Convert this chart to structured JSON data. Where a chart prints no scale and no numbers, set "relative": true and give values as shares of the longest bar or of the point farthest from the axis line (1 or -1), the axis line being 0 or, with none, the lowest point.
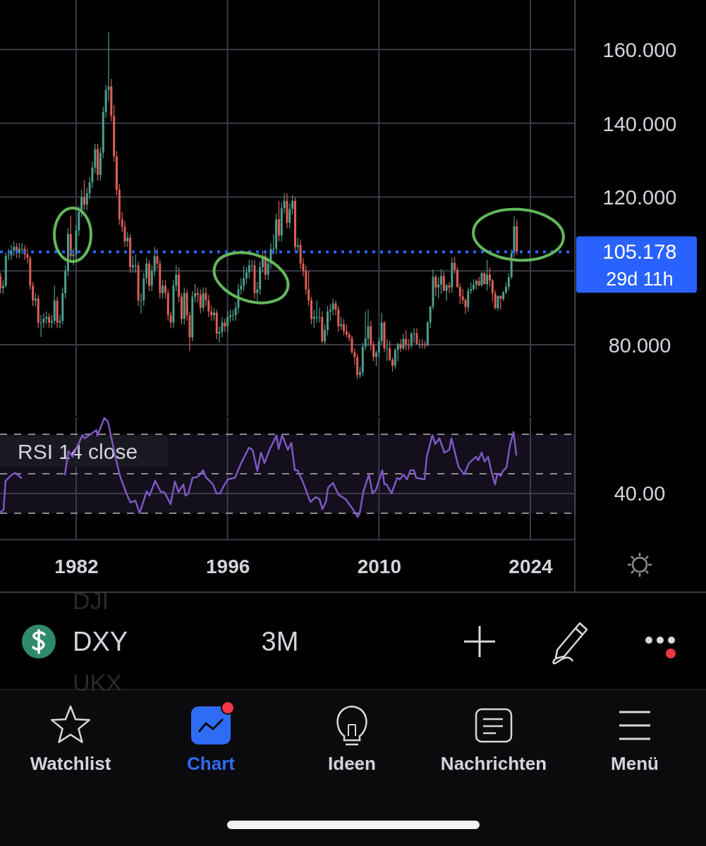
{
  "chart_data": [
    {
      "type": "candlestick",
      "xlim": [
        1974.96,
        2028.11
      ],
      "xticks": [
        1982,
        1996,
        2010,
        2024
      ],
      "ylim": [
        60.7,
        173.4
      ],
      "yticks": [
        {
          "value": 80,
          "label": "80.000"
        },
        {
          "value": 100,
          "label": null
        },
        {
          "value": 120,
          "label": "120.000"
        },
        {
          "value": 140,
          "label": "140.000"
        },
        {
          "value": 160,
          "label": "160.000"
        }
      ],
      "grid": true,
      "tick_labels": "y",
      "x": [
        1975,
        1975.25,
        1975.5,
        1975.75,
        1976,
        1976.25,
        1976.5,
        1976.75,
        1977,
        1977.25,
        1977.5,
        1977.75,
        1978,
        1978.25,
        1978.5,
        1978.75,
        1979,
        1979.25,
        1979.5,
        1979.75,
        1980,
        1980.25,
        1980.5,
        1980.75,
        1981,
        1981.25,
        1981.5,
        1981.75,
        1982,
        1982.25,
        1982.5,
        1982.75,
        1983,
        1983.25,
        1983.5,
        1983.75,
        1984,
        1984.25,
        1984.5,
        1984.75,
        1985,
        1985.25,
        1985.5,
        1985.75,
        1986,
        1986.25,
        1986.5,
        1986.75,
        1987,
        1987.25,
        1987.5,
        1987.75,
        1988,
        1988.25,
        1988.5,
        1988.75,
        1989,
        1989.25,
        1989.5,
        1989.75,
        1990,
        1990.25,
        1990.5,
        1990.75,
        1991,
        1991.25,
        1991.5,
        1991.75,
        1992,
        1992.25,
        1992.5,
        1992.75,
        1993,
        1993.25,
        1993.5,
        1993.75,
        1994,
        1994.25,
        1994.5,
        1994.75,
        1995,
        1995.25,
        1995.5,
        1995.75,
        1996,
        1996.25,
        1996.5,
        1996.75,
        1997,
        1997.25,
        1997.5,
        1997.75,
        1998,
        1998.25,
        1998.5,
        1998.75,
        1999,
        1999.25,
        1999.5,
        1999.75,
        2000,
        2000.25,
        2000.5,
        2000.75,
        2001,
        2001.25,
        2001.5,
        2001.75,
        2002,
        2002.25,
        2002.5,
        2002.75,
        2003,
        2003.25,
        2003.5,
        2003.75,
        2004,
        2004.25,
        2004.5,
        2004.75,
        2005,
        2005.25,
        2005.5,
        2005.75,
        2006,
        2006.25,
        2006.5,
        2006.75,
        2007,
        2007.25,
        2007.5,
        2007.75,
        2008,
        2008.25,
        2008.5,
        2008.75,
        2009,
        2009.25,
        2009.5,
        2009.75,
        2010,
        2010.25,
        2010.5,
        2010.75,
        2011,
        2011.25,
        2011.5,
        2011.75,
        2012,
        2012.25,
        2012.5,
        2012.75,
        2013,
        2013.25,
        2013.5,
        2013.75,
        2014,
        2014.25,
        2014.5,
        2014.75,
        2015,
        2015.25,
        2015.5,
        2015.75,
        2016,
        2016.25,
        2016.5,
        2016.75,
        2017,
        2017.25,
        2017.5,
        2017.75,
        2018,
        2018.25,
        2018.5,
        2018.75,
        2019,
        2019.25,
        2019.5,
        2019.75,
        2020,
        2020.25,
        2020.5,
        2020.75,
        2021,
        2021.25,
        2021.5,
        2021.75,
        2022,
        2022.25,
        2022.5,
        2022.75
      ],
      "ohlc": [
        [
          98.5,
          99.5,
          94.0,
          95.3
        ],
        [
          95.3,
          97.5,
          93.8,
          96.0
        ],
        [
          96.0,
          105.0,
          95.5,
          104.0
        ],
        [
          104.0,
          106.0,
          102.8,
          104.3
        ],
        [
          104.3,
          107.0,
          103.0,
          105.5
        ],
        [
          105.5,
          108.0,
          104.0,
          106.5
        ],
        [
          106.5,
          107.5,
          103.5,
          105.0
        ],
        [
          105.0,
          107.5,
          103.5,
          106.0
        ],
        [
          106.0,
          107.5,
          104.5,
          106.0
        ],
        [
          106.0,
          107.0,
          103.0,
          104.5
        ],
        [
          104.5,
          106.0,
          102.0,
          103.5
        ],
        [
          103.5,
          104.0,
          95.0,
          96.0
        ],
        [
          96.0,
          97.0,
          90.5,
          92.0
        ],
        [
          92.0,
          94.0,
          90.5,
          92.5
        ],
        [
          92.5,
          93.5,
          84.5,
          86.0
        ],
        [
          86.0,
          88.0,
          82.1,
          86.0
        ],
        [
          86.0,
          88.5,
          84.5,
          87.0
        ],
        [
          87.0,
          89.0,
          85.5,
          87.5
        ],
        [
          87.5,
          88.5,
          84.5,
          86.0
        ],
        [
          86.0,
          88.0,
          84.5,
          86.5
        ],
        [
          86.5,
          96.0,
          85.5,
          92.0
        ],
        [
          92.0,
          93.0,
          84.5,
          86.0
        ],
        [
          86.0,
          88.0,
          84.5,
          86.5
        ],
        [
          86.5,
          95.5,
          85.5,
          94.0
        ],
        [
          94.0,
          101.5,
          92.5,
          100.0
        ],
        [
          100.0,
          111.5,
          98.5,
          110.0
        ],
        [
          110.0,
          115.0,
          102.5,
          104.0
        ],
        [
          104.0,
          106.0,
          101.5,
          104.5
        ],
        [
          104.5,
          112.5,
          103.0,
          111.0
        ],
        [
          111.0,
          117.5,
          109.5,
          116.0
        ],
        [
          116.0,
          122.0,
          114.5,
          120.0
        ],
        [
          120.0,
          124.5,
          116.5,
          118.0
        ],
        [
          118.0,
          122.5,
          116.5,
          121.0
        ],
        [
          121.0,
          125.5,
          119.5,
          124.0
        ],
        [
          124.0,
          129.5,
          122.5,
          128.0
        ],
        [
          128.0,
          134.5,
          126.5,
          133.0
        ],
        [
          133.0,
          134.5,
          124.5,
          126.0
        ],
        [
          126.0,
          133.5,
          124.5,
          132.0
        ],
        [
          132.0,
          144.5,
          130.5,
          143.0
        ],
        [
          143.0,
          150.5,
          141.5,
          149.0
        ],
        [
          149.0,
          164.7,
          146.0,
          150.0
        ],
        [
          150.0,
          152.0,
          140.5,
          142.0
        ],
        [
          142.0,
          145.0,
          129.5,
          131.0
        ],
        [
          131.0,
          132.5,
          120.5,
          122.0
        ],
        [
          122.0,
          123.5,
          112.5,
          114.0
        ],
        [
          114.0,
          116.0,
          110.5,
          112.0
        ],
        [
          112.0,
          113.5,
          106.5,
          108.0
        ],
        [
          108.0,
          110.5,
          106.5,
          109.0
        ],
        [
          109.0,
          110.0,
          99.5,
          101.0
        ],
        [
          101.0,
          104.0,
          99.5,
          101.5
        ],
        [
          101.5,
          104.5,
          99.5,
          101.5
        ],
        [
          101.5,
          102.5,
          90.5,
          92.0
        ],
        [
          92.0,
          94.0,
          88.5,
          92.0
        ],
        [
          92.0,
          99.5,
          90.5,
          98.0
        ],
        [
          98.0,
          103.5,
          96.5,
          102.0
        ],
        [
          102.0,
          103.0,
          94.5,
          96.0
        ],
        [
          96.0,
          101.5,
          94.5,
          100.0
        ],
        [
          100.0,
          106.5,
          98.5,
          104.0
        ],
        [
          104.0,
          106.0,
          100.5,
          102.0
        ],
        [
          102.0,
          103.0,
          92.5,
          94.0
        ],
        [
          94.0,
          97.5,
          92.5,
          96.0
        ],
        [
          96.0,
          97.5,
          92.5,
          94.0
        ],
        [
          94.0,
          95.0,
          86.5,
          88.0
        ],
        [
          88.0,
          89.0,
          84.5,
          86.0
        ],
        [
          86.0,
          97.5,
          84.5,
          96.0
        ],
        [
          96.0,
          101.5,
          94.5,
          99.0
        ],
        [
          99.0,
          101.0,
          91.5,
          93.0
        ],
        [
          93.0,
          94.0,
          85.5,
          87.0
        ],
        [
          87.0,
          95.5,
          85.5,
          94.0
        ],
        [
          94.0,
          95.0,
          86.5,
          88.0
        ],
        [
          88.0,
          89.0,
          78.3,
          82.0
        ],
        [
          82.0,
          94.5,
          81.0,
          93.0
        ],
        [
          93.0,
          96.5,
          91.5,
          94.0
        ],
        [
          94.0,
          95.5,
          91.5,
          93.5
        ],
        [
          93.5,
          95.0,
          88.5,
          90.0
        ],
        [
          90.0,
          95.5,
          89.0,
          94.0
        ],
        [
          94.0,
          95.5,
          90.5,
          92.0
        ],
        [
          92.0,
          93.5,
          87.5,
          89.0
        ],
        [
          89.0,
          90.5,
          86.5,
          88.0
        ],
        [
          88.0,
          90.0,
          86.5,
          88.7
        ],
        [
          88.7,
          89.5,
          81.5,
          83.0
        ],
        [
          83.0,
          85.0,
          80.5,
          83.5
        ],
        [
          83.5,
          87.5,
          82.0,
          86.0
        ],
        [
          86.0,
          87.0,
          83.5,
          85.0
        ],
        [
          85.0,
          89.0,
          83.5,
          87.5
        ],
        [
          87.5,
          89.5,
          86.0,
          88.0
        ],
        [
          88.0,
          89.5,
          86.5,
          88.0
        ],
        [
          88.0,
          91.5,
          86.5,
          90.0
        ],
        [
          90.0,
          96.5,
          88.5,
          95.0
        ],
        [
          95.0,
          98.0,
          93.5,
          96.0
        ],
        [
          96.0,
          101.5,
          94.5,
          98.0
        ],
        [
          98.0,
          101.0,
          96.5,
          99.6
        ],
        [
          99.6,
          103.0,
          98.0,
          101.5
        ],
        [
          101.5,
          103.0,
          100.0,
          101.5
        ],
        [
          101.5,
          103.0,
          92.5,
          94.0
        ],
        [
          94.0,
          97.0,
          91.5,
          95.0
        ],
        [
          95.0,
          102.5,
          93.5,
          101.0
        ],
        [
          101.0,
          105.5,
          99.5,
          104.0
        ],
        [
          104.0,
          105.0,
          97.5,
          99.0
        ],
        [
          99.0,
          103.5,
          97.5,
          102.0
        ],
        [
          102.0,
          107.5,
          100.5,
          106.0
        ],
        [
          106.0,
          110.0,
          104.5,
          106.0
        ],
        [
          106.0,
          115.5,
          104.5,
          114.0
        ],
        [
          114.0,
          119.0,
          108.0,
          109.6
        ],
        [
          109.6,
          118.5,
          108.0,
          117.0
        ],
        [
          117.0,
          121.0,
          115.5,
          119.0
        ],
        [
          119.0,
          121.0,
          111.5,
          113.0
        ],
        [
          113.0,
          118.3,
          111.5,
          116.8
        ],
        [
          116.8,
          120.5,
          115.3,
          119.0
        ],
        [
          119.0,
          120.0,
          105.0,
          106.5
        ],
        [
          106.5,
          109.0,
          105.0,
          107.0
        ],
        [
          107.0,
          108.5,
          100.5,
          102.0
        ],
        [
          102.0,
          103.5,
          98.5,
          100.0
        ],
        [
          100.0,
          101.5,
          93.5,
          95.0
        ],
        [
          95.0,
          100.0,
          90.5,
          92.0
        ],
        [
          92.0,
          93.0,
          85.5,
          87.0
        ],
        [
          87.0,
          89.5,
          84.5,
          87.5
        ],
        [
          87.5,
          92.0,
          86.0,
          87.5
        ],
        [
          87.5,
          90.0,
          86.0,
          87.5
        ],
        [
          87.5,
          89.0,
          80.4,
          80.9
        ],
        [
          80.9,
          85.5,
          80.0,
          84.0
        ],
        [
          84.0,
          90.5,
          82.5,
          89.0
        ],
        [
          89.0,
          91.0,
          86.5,
          89.5
        ],
        [
          89.5,
          92.5,
          88.0,
          91.2
        ],
        [
          91.2,
          92.0,
          88.0,
          89.5
        ],
        [
          89.5,
          90.5,
          83.5,
          85.0
        ],
        [
          85.0,
          87.5,
          84.0,
          85.5
        ],
        [
          85.5,
          87.0,
          82.5,
          83.7
        ],
        [
          83.7,
          85.5,
          82.0,
          82.8
        ],
        [
          82.8,
          83.5,
          80.8,
          81.8
        ],
        [
          81.8,
          82.5,
          77.5,
          78.0
        ],
        [
          78.0,
          79.0,
          74.5,
          76.7
        ],
        [
          76.7,
          77.5,
          70.7,
          71.8
        ],
        [
          71.8,
          74.0,
          71.0,
          72.5
        ],
        [
          72.5,
          80.5,
          71.5,
          79.5
        ],
        [
          79.5,
          89.0,
          78.5,
          81.7
        ],
        [
          81.7,
          89.5,
          79.5,
          85.0
        ],
        [
          85.0,
          86.5,
          78.5,
          80.0
        ],
        [
          80.0,
          81.0,
          75.5,
          76.7
        ],
        [
          76.7,
          78.5,
          74.2,
          77.9
        ],
        [
          77.9,
          82.0,
          76.5,
          81.0
        ],
        [
          81.0,
          88.7,
          80.0,
          86.0
        ],
        [
          86.0,
          86.5,
          78.0,
          79.0
        ],
        [
          79.0,
          81.5,
          75.6,
          79.0
        ],
        [
          79.0,
          81.0,
          75.5,
          75.9
        ],
        [
          75.9,
          76.5,
          72.7,
          74.3
        ],
        [
          74.3,
          79.0,
          73.5,
          78.6
        ],
        [
          78.6,
          80.5,
          75.5,
          80.2
        ],
        [
          80.2,
          81.5,
          78.0,
          79.0
        ],
        [
          79.0,
          83.0,
          78.5,
          81.6
        ],
        [
          81.6,
          84.0,
          78.5,
          79.9
        ],
        [
          79.9,
          81.5,
          78.5,
          79.8
        ],
        [
          79.8,
          83.5,
          79.0,
          83.0
        ],
        [
          83.0,
          84.5,
          80.5,
          83.1
        ],
        [
          83.1,
          84.5,
          80.0,
          80.2
        ],
        [
          80.2,
          81.5,
          79.0,
          80.2
        ],
        [
          80.2,
          81.5,
          79.0,
          80.1
        ],
        [
          80.1,
          81.0,
          78.9,
          79.8
        ],
        [
          79.8,
          86.5,
          79.5,
          86.0
        ],
        [
          86.0,
          90.5,
          84.5,
          90.3
        ],
        [
          90.3,
          100.4,
          89.5,
          98.4
        ],
        [
          98.4,
          99.0,
          93.2,
          95.5
        ],
        [
          95.5,
          98.3,
          92.6,
          96.3
        ],
        [
          96.3,
          100.5,
          93.8,
          98.6
        ],
        [
          98.6,
          100.0,
          94.5,
          94.6
        ],
        [
          94.6,
          96.5,
          91.9,
          96.1
        ],
        [
          96.1,
          97.0,
          94.0,
          95.5
        ],
        [
          95.5,
          103.6,
          94.0,
          102.2
        ],
        [
          102.2,
          103.8,
          99.2,
          100.3
        ],
        [
          100.3,
          101.0,
          95.5,
          95.6
        ],
        [
          95.6,
          96.5,
          91.0,
          93.1
        ],
        [
          93.1,
          95.1,
          91.0,
          92.1
        ],
        [
          92.1,
          92.6,
          88.3,
          90.2
        ],
        [
          90.2,
          95.5,
          88.9,
          94.6
        ],
        [
          94.6,
          96.9,
          93.7,
          95.1
        ],
        [
          95.1,
          97.7,
          94.6,
          96.2
        ],
        [
          96.2,
          97.7,
          95.0,
          97.3
        ],
        [
          97.3,
          98.4,
          95.8,
          96.1
        ],
        [
          96.1,
          99.7,
          95.8,
          99.4
        ],
        [
          99.4,
          99.7,
          96.4,
          96.4
        ],
        [
          96.4,
          103.0,
          94.6,
          99.0
        ],
        [
          99.0,
          100.9,
          95.7,
          97.4
        ],
        [
          97.4,
          97.8,
          91.7,
          93.9
        ],
        [
          93.9,
          94.8,
          89.6,
          89.9
        ],
        [
          89.9,
          93.4,
          89.2,
          93.2
        ],
        [
          93.2,
          93.4,
          89.5,
          92.4
        ],
        [
          92.4,
          94.5,
          91.8,
          94.2
        ],
        [
          94.2,
          96.9,
          93.7,
          95.7
        ],
        [
          95.7,
          99.4,
          94.6,
          98.3
        ],
        [
          98.3,
          105.8,
          97.7,
          104.7
        ],
        [
          104.7,
          114.8,
          103.7,
          112.1
        ],
        [
          112.1,
          113.9,
          104.4,
          105.178
        ]
      ],
      "ref_lines": [
        {
          "axis": "y",
          "value": 105.178,
          "label": "105.178",
          "color": "#2962ff",
          "line_style": "dotted"
        }
      ],
      "annotations": [
        "29d 11h"
      ]
    },
    {
      "type": "line",
      "title": "RSI 14 close",
      "xlim": [
        1974.96,
        2028.11
      ],
      "xticks": [
        1982,
        1996,
        2010,
        2024
      ],
      "relative": true,
      "grid": "x",
      "series": [
        {
          "color": "#7e57c2",
          "x": [
            1974.96,
            1975.29,
            1975.48,
            1976.07,
            1976.39,
            1976.92,
            1979.0,
            1980.96,
            1981.29,
            1981.68,
            1982.59,
            1982.79,
            1983.89,
            1983.96,
            1984.61,
            1984.94,
            1985.59,
            1986.05,
            1986.7,
            1987.03,
            1987.48,
            1987.87,
            1988.53,
            1988.79,
            1989.31,
            1989.83,
            1990.16,
            1990.74,
            1991.13,
            1991.46,
            1991.92,
            1992.11,
            1992.37,
            1992.76,
            1993.09,
            1993.35,
            1993.74,
            1994.0,
            1994.66,
            1994.98,
            1995.31,
            1995.63,
            1996.03,
            1996.68,
            1997.26,
            1997.98,
            1998.31,
            1998.76,
            1999.09,
            1999.42,
            1999.87,
            2000.53,
            2000.72,
            2001.05,
            2001.57,
            2001.9,
            2002.22,
            2002.48,
            2003.0,
            2003.66,
            2004.18,
            2004.5,
            2004.77,
            2005.09,
            2005.29,
            2005.74,
            2006.27,
            2006.92,
            2007.57,
            2008.03,
            2008.22,
            2008.55,
            2009.07,
            2009.4,
            2009.72,
            2010.31,
            2010.5,
            2010.7,
            2011.16,
            2011.68,
            2011.94,
            2012.27,
            2012.59,
            2012.92,
            2013.24,
            2013.44,
            2014.22,
            2014.42,
            2014.94,
            2015.2,
            2015.59,
            2016.05,
            2016.5,
            2016.7,
            2017.35,
            2017.87,
            2018.33,
            2018.98,
            2019.18,
            2019.5,
            2019.77,
            2020.09,
            2020.42,
            2020.74,
            2020.94,
            2021.26,
            2021.46,
            2021.79,
            2022.11,
            2022.44,
            2022.7
          ],
          "values": [
            0.044,
            0.072,
            0.364,
            0.428,
            0.444,
            0.394,
            null,
            0.428,
            0.664,
            0.608,
            0.828,
            0.794,
            0.878,
            0.822,
            1,
            0.964,
            0.628,
            0.414,
            0.222,
            0.144,
            0.164,
            0.036,
            0.258,
            0.214,
            0.364,
            0.25,
            0.25,
            0.128,
            0.358,
            0.25,
            0.328,
            0.214,
            0.236,
            0.394,
            0.4,
            0.414,
            0.472,
            0.4,
            0.328,
            0.236,
            0.236,
            0.308,
            0.378,
            0.394,
            0.544,
            0.7,
            0.678,
            0.464,
            0.65,
            0.544,
            0.678,
            0.822,
            0.686,
            0.828,
            0.678,
            0.75,
            0.472,
            0.472,
            0.344,
            0.15,
            0.2,
            0.178,
            0.078,
            0.15,
            0.294,
            0.344,
            0.222,
            0.178,
            0.078,
            0,
            0.036,
            0.25,
            0.428,
            0.236,
            0.272,
            0.472,
            0.328,
            0.328,
            0.236,
            0.394,
            0.378,
            0.428,
            0.378,
            0.472,
            0.472,
            0.394,
            0.378,
            0.608,
            0.828,
            0.736,
            0.794,
            0.65,
            0.678,
            0.794,
            0.508,
            0.428,
            0.544,
            0.608,
            0.572,
            0.65,
            0.558,
            0.608,
            0.45,
            0.328,
            0.436,
            0.414,
            0.464,
            0.5,
            0.722,
            0.858,
            0.628
          ]
        }
      ],
      "ref_lines": [
        {
          "axis": "y",
          "value": 0.836,
          "color": "#8a8a8f",
          "line_style": "dashed"
        },
        {
          "axis": "y",
          "value": 0.436,
          "color": "#8a8a8f",
          "line_style": "dashed"
        },
        {
          "axis": "y",
          "value": 0.036,
          "color": "#8a8a8f",
          "line_style": "dashed"
        },
        {
          "axis": "y",
          "value": 0.236,
          "color": "#3a3d48",
          "line_style": "solid"
        }
      ],
      "annotations": [
        "40.00"
      ],
      "bands": [
        {
          "axis": "y",
          "from": 0.036,
          "to": 0.836,
          "color": "#130f1c"
        }
      ]
    },
    {
      "type": "other",
      "annotations": [
        "DJI",
        "DXY",
        "UKX",
        "3M",
        "Watchlist",
        "Chart",
        "Ideen",
        "Nachrichten",
        "Menü"
      ]
    }
  ]
}
